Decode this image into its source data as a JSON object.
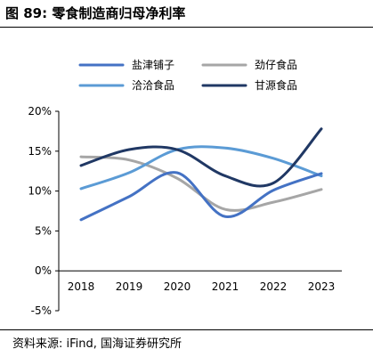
{
  "figure": {
    "title": "图 89:  零食制造商归母净利率",
    "source": "资料来源:  iFind,  国海证券研究所"
  },
  "chart_data": {
    "type": "line",
    "title": "",
    "xlabel": "",
    "ylabel": "",
    "categories": [
      "2018",
      "2019",
      "2020",
      "2021",
      "2022",
      "2023"
    ],
    "y_ticks": [
      20,
      15,
      10,
      5,
      0,
      -5
    ],
    "y_tick_labels": [
      "20%",
      "15%",
      "10%",
      "5%",
      "0%",
      "-5%"
    ],
    "ylim": [
      -5,
      20
    ],
    "y_unit": "%",
    "grid": false,
    "smooth": true,
    "legend_position": "top",
    "series": [
      {
        "name": "盐津铺子",
        "color": "#4472c4",
        "values": [
          6.4,
          9.3,
          12.3,
          6.8,
          10.1,
          12.2
        ]
      },
      {
        "name": "劲仔食品",
        "color": "#a6a6a6",
        "values": [
          14.3,
          13.9,
          11.6,
          7.7,
          8.6,
          10.2
        ]
      },
      {
        "name": "洽洽食品",
        "color": "#5b9bd5",
        "values": [
          10.3,
          12.3,
          15.2,
          15.4,
          14.1,
          11.9
        ]
      },
      {
        "name": "甘源食品",
        "color": "#203864",
        "values": [
          13.2,
          15.2,
          15.2,
          11.9,
          11.0,
          17.8
        ]
      }
    ]
  }
}
